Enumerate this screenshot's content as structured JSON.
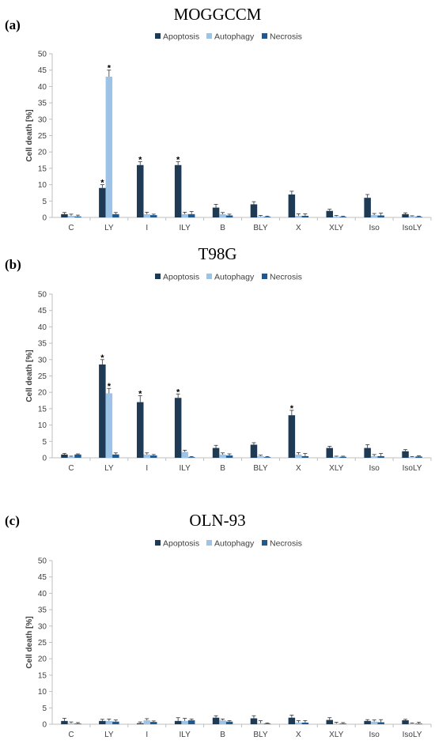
{
  "colors": {
    "apoptosis": "#1f3a55",
    "autophagy": "#9dc3e6",
    "necrosis": "#1d5a94",
    "axis": "#bfbfbf",
    "text": "#404040"
  },
  "chart_data": [
    {
      "panel": "(a)",
      "title": "MOGGCCM",
      "type": "bar",
      "ylabel": "Cell death [%]",
      "ylim": [
        0,
        50
      ],
      "yticks": [
        0,
        5,
        10,
        15,
        20,
        25,
        30,
        35,
        40,
        45,
        50
      ],
      "legend_position": "top",
      "categories": [
        "C",
        "LY",
        "I",
        "ILY",
        "B",
        "BLY",
        "X",
        "XLY",
        "Iso",
        "IsoLY"
      ],
      "series": [
        {
          "name": "Apoptosis",
          "values": [
            1,
            9,
            16,
            16,
            3,
            4,
            7,
            2,
            6,
            1
          ],
          "errors": [
            0.5,
            1,
            1,
            1,
            1,
            0.8,
            1,
            0.5,
            1,
            0.4
          ],
          "significant": [
            false,
            true,
            true,
            true,
            false,
            false,
            false,
            false,
            false,
            false
          ]
        },
        {
          "name": "Autophagy",
          "values": [
            0.5,
            43,
            1,
            1,
            1,
            0.3,
            0.5,
            0.3,
            0.7,
            0.3
          ],
          "errors": [
            0.5,
            2,
            0.6,
            0.6,
            0.5,
            0.3,
            0.6,
            0.3,
            0.5,
            0.2
          ],
          "significant": [
            false,
            true,
            false,
            false,
            false,
            false,
            false,
            false,
            false,
            false
          ]
        },
        {
          "name": "Necrosis",
          "values": [
            0.3,
            1,
            0.7,
            1,
            0.6,
            0.2,
            0.5,
            0.2,
            0.6,
            0.2
          ],
          "errors": [
            0.4,
            0.5,
            0.3,
            0.8,
            0.4,
            0.2,
            0.6,
            0.2,
            0.7,
            0.2
          ],
          "significant": [
            false,
            false,
            false,
            false,
            false,
            false,
            false,
            false,
            false,
            false
          ]
        }
      ]
    },
    {
      "panel": "(b)",
      "title": "T98G",
      "type": "bar",
      "ylabel": "Cell death [%]",
      "ylim": [
        0,
        50
      ],
      "yticks": [
        0,
        5,
        10,
        15,
        20,
        25,
        30,
        35,
        40,
        45,
        50
      ],
      "legend_position": "top",
      "categories": [
        "C",
        "LY",
        "I",
        "ILY",
        "B",
        "BLY",
        "X",
        "XLY",
        "Iso",
        "IsoLY"
      ],
      "series": [
        {
          "name": "Apoptosis",
          "values": [
            1,
            28.5,
            17,
            18.3,
            3,
            4,
            13,
            3,
            3,
            2
          ],
          "errors": [
            0.3,
            1.5,
            2,
            1.2,
            0.8,
            0.6,
            1.5,
            0.5,
            1,
            0.5
          ],
          "significant": [
            false,
            true,
            true,
            true,
            false,
            false,
            true,
            false,
            false,
            false
          ]
        },
        {
          "name": "Autophagy",
          "values": [
            0.3,
            19.7,
            1,
            1.8,
            1,
            0.5,
            1,
            0.3,
            0.5,
            0.2
          ],
          "errors": [
            0.2,
            1.5,
            0.5,
            0.5,
            0.5,
            0.3,
            0.6,
            0.2,
            0.5,
            0.2
          ],
          "significant": [
            false,
            true,
            false,
            false,
            false,
            false,
            false,
            false,
            false,
            false
          ]
        },
        {
          "name": "Necrosis",
          "values": [
            1,
            1,
            0.7,
            0.2,
            0.7,
            0.2,
            0.5,
            0.3,
            0.5,
            0.4
          ],
          "errors": [
            0.2,
            0.5,
            0.3,
            0.2,
            0.5,
            0.2,
            0.8,
            0.2,
            0.8,
            0.2
          ],
          "significant": [
            false,
            false,
            false,
            false,
            false,
            false,
            false,
            false,
            false,
            false
          ]
        }
      ]
    },
    {
      "panel": "(c)",
      "title": "OLN-93",
      "type": "bar",
      "ylabel": "Cell death [%]",
      "ylim": [
        0,
        50
      ],
      "yticks": [
        0,
        5,
        10,
        15,
        20,
        25,
        30,
        35,
        40,
        45,
        50
      ],
      "legend_position": "top",
      "categories": [
        "C",
        "LY",
        "I",
        "ILY",
        "B",
        "BLY",
        "X",
        "XLY",
        "Iso",
        "IsoLY"
      ],
      "series": [
        {
          "name": "Apoptosis",
          "values": [
            1,
            1,
            0.3,
            1,
            2,
            1.8,
            2,
            1.3,
            1,
            1.2
          ],
          "errors": [
            0.8,
            0.5,
            0.4,
            1,
            0.6,
            0.8,
            0.8,
            0.7,
            0.4,
            0.3
          ],
          "significant": [
            false,
            false,
            false,
            false,
            false,
            false,
            false,
            false,
            false,
            false
          ]
        },
        {
          "name": "Autophagy",
          "values": [
            0.3,
            1,
            1.2,
            1,
            1.2,
            0.3,
            0.5,
            0.2,
            0.8,
            0.2
          ],
          "errors": [
            0.4,
            0.6,
            0.5,
            0.8,
            0.4,
            0.8,
            0.6,
            0.4,
            0.5,
            0.2
          ],
          "significant": [
            false,
            false,
            false,
            false,
            false,
            false,
            false,
            false,
            false,
            false
          ]
        },
        {
          "name": "Necrosis",
          "values": [
            0.2,
            0.8,
            0.7,
            1.2,
            0.8,
            0.2,
            0.5,
            0.2,
            0.6,
            0.2
          ],
          "errors": [
            0.3,
            0.5,
            0.3,
            0.4,
            0.3,
            0.2,
            0.6,
            0.3,
            0.8,
            0.4
          ],
          "significant": [
            false,
            false,
            false,
            false,
            false,
            false,
            false,
            false,
            false,
            false
          ]
        }
      ]
    }
  ]
}
